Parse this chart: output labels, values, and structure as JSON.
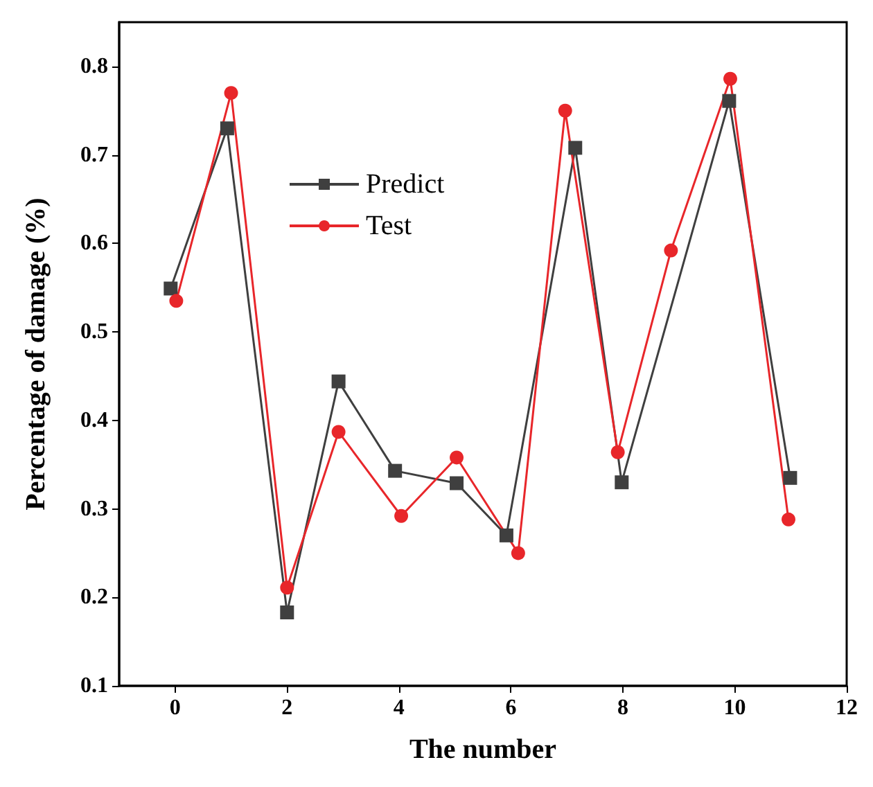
{
  "chart_data": {
    "type": "line",
    "xlabel": "The number",
    "ylabel": "Percentage of damage (%)",
    "xlim": [
      -1,
      12
    ],
    "xticks": [
      0,
      2,
      4,
      6,
      8,
      10,
      12
    ],
    "ylim": [
      0.1,
      0.85
    ],
    "yticks": [
      0.1,
      0.2,
      0.3,
      0.4,
      0.5,
      0.6,
      0.7,
      0.8
    ],
    "grid": false,
    "legend": "top left",
    "series": [
      {
        "name": "Predict",
        "color": "#3f3f3f",
        "marker": "square",
        "x": [
          -0.08,
          0.93,
          2.0,
          2.92,
          3.93,
          5.03,
          5.92,
          7.15,
          7.98,
          9.9,
          10.99
        ],
        "values": [
          0.549,
          0.73,
          0.183,
          0.444,
          0.343,
          0.329,
          0.27,
          0.708,
          0.33,
          0.761,
          0.335
        ]
      },
      {
        "name": "Test",
        "color": "#e8262a",
        "marker": "circle",
        "x": [
          0.02,
          1.0,
          2.0,
          2.92,
          4.04,
          5.03,
          6.13,
          6.97,
          7.91,
          8.86,
          9.92,
          10.96
        ],
        "values": [
          0.535,
          0.77,
          0.211,
          0.387,
          0.292,
          0.358,
          0.25,
          0.75,
          0.364,
          0.592,
          0.786,
          0.288
        ]
      }
    ]
  }
}
